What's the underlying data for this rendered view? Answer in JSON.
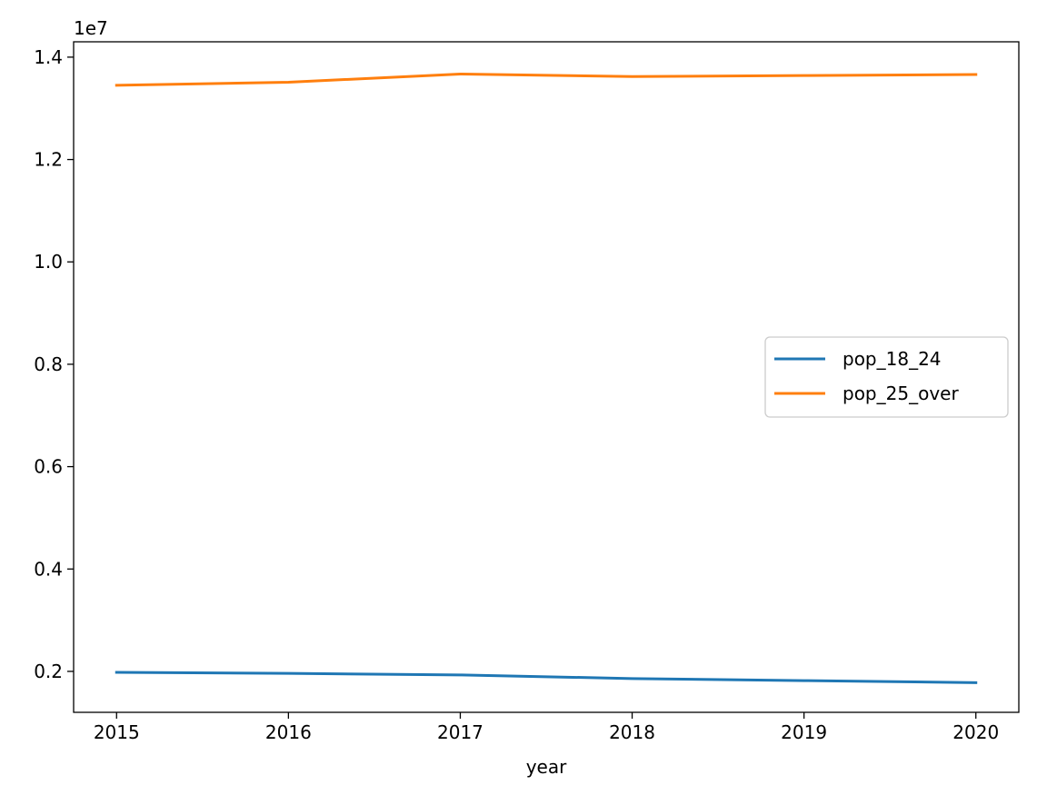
{
  "chart_data": {
    "type": "line",
    "x": [
      2015,
      2016,
      2017,
      2018,
      2019,
      2020
    ],
    "xlabel": "year",
    "ylabel": "",
    "title": "",
    "y_offset_label": "1e7",
    "xlim": [
      2014.75,
      2020.25
    ],
    "ylim": [
      0.12,
      1.43
    ],
    "xticks": [
      2015,
      2016,
      2017,
      2018,
      2019,
      2020
    ],
    "xtick_labels": [
      "2015",
      "2016",
      "2017",
      "2018",
      "2019",
      "2020"
    ],
    "yticks": [
      0.2,
      0.4,
      0.6,
      0.8,
      1.0,
      1.2,
      1.4
    ],
    "ytick_labels": [
      "0.2",
      "0.4",
      "0.6",
      "0.8",
      "1.0",
      "1.2",
      "1.4"
    ],
    "y_unit_multiplier": 10000000,
    "grid": false,
    "legend_position": "center right",
    "series": [
      {
        "name": "pop_18_24",
        "color": "#1f77b4",
        "values": [
          0.198,
          0.196,
          0.193,
          0.186,
          0.182,
          0.178
        ]
      },
      {
        "name": "pop_25_over",
        "color": "#ff7f0e",
        "values": [
          1.345,
          1.351,
          1.367,
          1.362,
          1.364,
          1.366
        ]
      }
    ]
  }
}
